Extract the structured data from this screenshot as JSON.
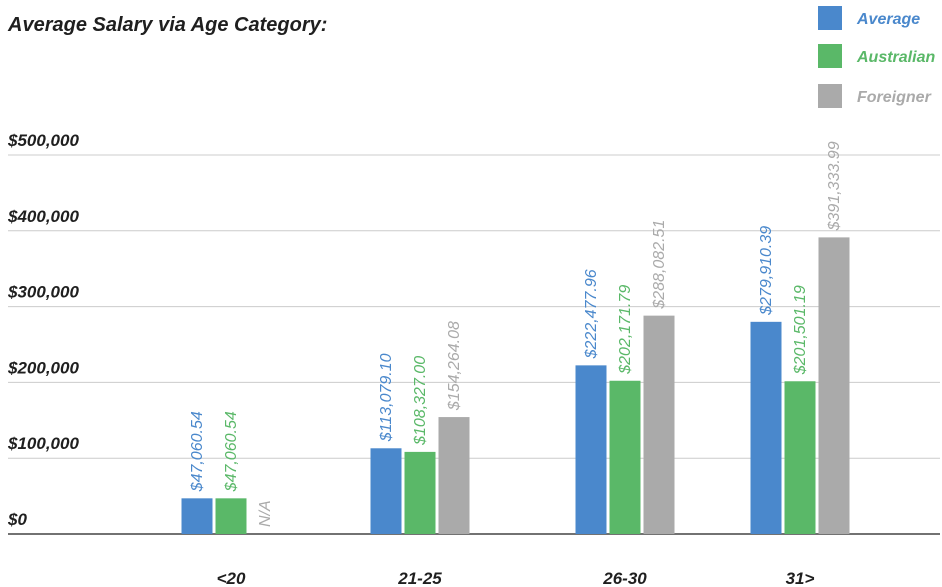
{
  "chart_data": {
    "type": "bar",
    "title": "Average Salary via Age Category:",
    "categories": [
      "<20",
      "21-25",
      "26-30",
      "31>"
    ],
    "series": [
      {
        "name": "Average",
        "color": "#4a88cc",
        "values": [
          47060.54,
          113079.1,
          222477.96,
          279910.39
        ],
        "labels": [
          "$47,060.54",
          "$113,079.10",
          "$222,477.96",
          "$279,910.39"
        ]
      },
      {
        "name": "Australian",
        "color": "#5ab868",
        "values": [
          47060.54,
          108327.0,
          202171.79,
          201501.19
        ],
        "labels": [
          "$47,060.54",
          "$108,327.00",
          "$202,171.79",
          "$201,501.19"
        ]
      },
      {
        "name": "Foreigner",
        "color": "#aaaaaa",
        "values": [
          null,
          154264.08,
          288082.51,
          391333.99
        ],
        "labels": [
          "N/A",
          "$154,264.08",
          "$288,082.51",
          "$391,333.99"
        ]
      }
    ],
    "yticks": [
      0,
      100000,
      200000,
      300000,
      400000,
      500000
    ],
    "ytick_labels": [
      "$0",
      "$100,000",
      "$200,000",
      "$300,000",
      "$400,000",
      "$500,000"
    ],
    "ylim": [
      0,
      500000
    ],
    "grid": true,
    "legend_position": "top-right",
    "xlabel": "",
    "ylabel": ""
  }
}
